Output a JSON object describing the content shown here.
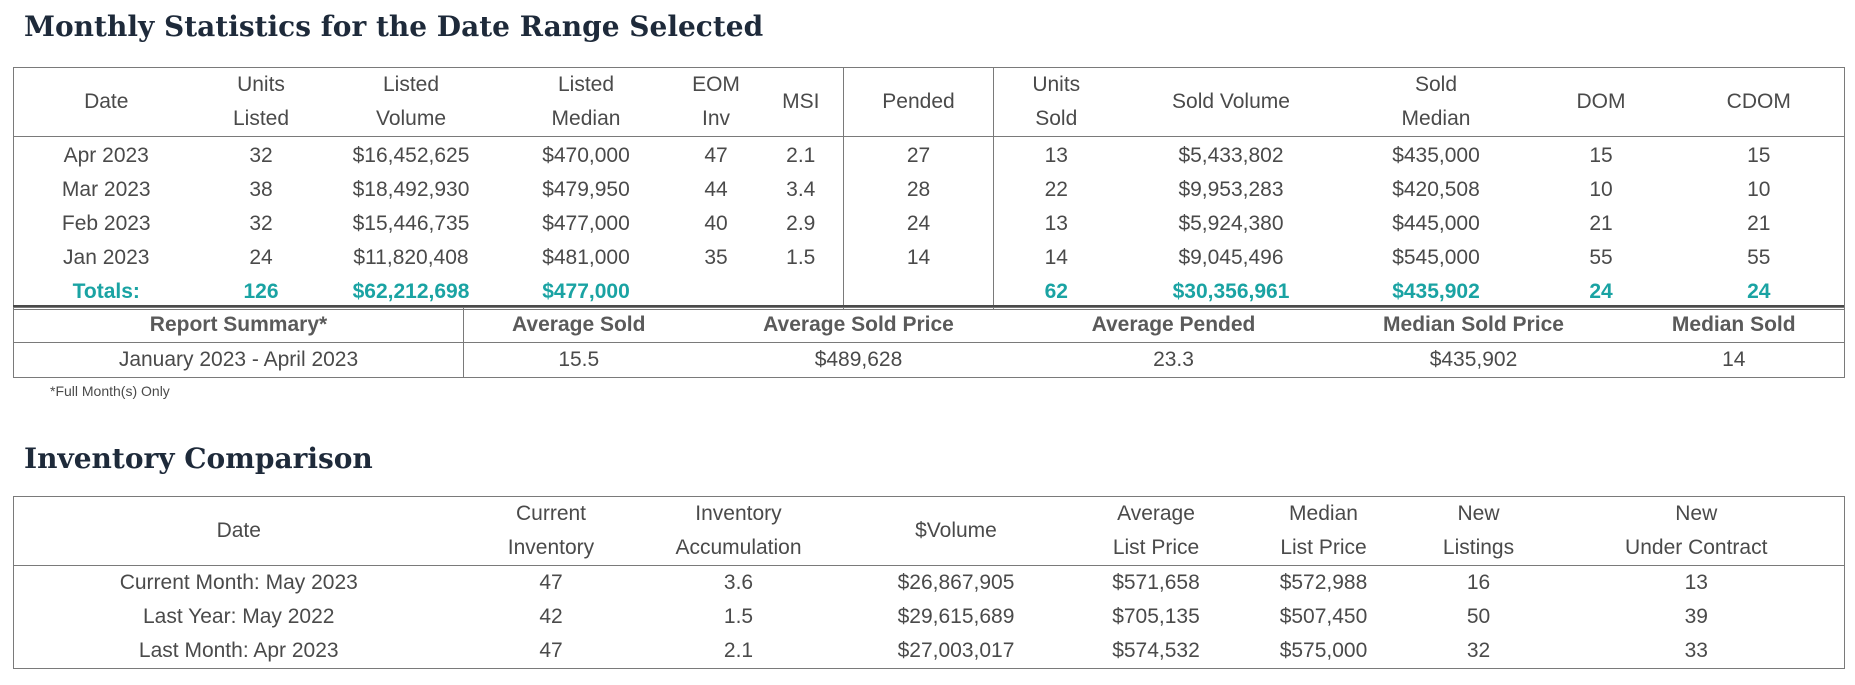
{
  "monthly": {
    "title": "Monthly Statistics for the Date Range Selected",
    "headers": {
      "date": "Date",
      "units_listed": [
        "Units",
        "Listed"
      ],
      "listed_volume": [
        "Listed",
        "Volume"
      ],
      "listed_median": [
        "Listed",
        "Median"
      ],
      "eom_inv": [
        "EOM",
        "Inv"
      ],
      "msi": "MSI",
      "pended": "Pended",
      "units_sold": [
        "Units",
        "Sold"
      ],
      "sold_volume": "Sold Volume",
      "sold_median": [
        "Sold",
        "Median"
      ],
      "dom": "DOM",
      "cdom": "CDOM"
    },
    "rows": [
      [
        "Apr 2023",
        "32",
        "$16,452,625",
        "$470,000",
        "47",
        "2.1",
        "27",
        "13",
        "$5,433,802",
        "$435,000",
        "15",
        "15"
      ],
      [
        "Mar 2023",
        "38",
        "$18,492,930",
        "$479,950",
        "44",
        "3.4",
        "28",
        "22",
        "$9,953,283",
        "$420,508",
        "10",
        "10"
      ],
      [
        "Feb 2023",
        "32",
        "$15,446,735",
        "$477,000",
        "40",
        "2.9",
        "24",
        "13",
        "$5,924,380",
        "$445,000",
        "21",
        "21"
      ],
      [
        "Jan 2023",
        "24",
        "$11,820,408",
        "$481,000",
        "35",
        "1.5",
        "14",
        "14",
        "$9,045,496",
        "$545,000",
        "55",
        "55"
      ]
    ],
    "totals": [
      "Totals:",
      "126",
      "$62,212,698",
      "$477,000",
      "",
      "",
      "",
      "62",
      "$30,356,961",
      "$435,902",
      "24",
      "24"
    ]
  },
  "summary": {
    "headers": [
      "Report Summary*",
      "Average Sold",
      "Average Sold Price",
      "Average Pended",
      "Median Sold Price",
      "Median Sold"
    ],
    "values": [
      "January 2023 - April 2023",
      "15.5",
      "$489,628",
      "23.3",
      "$435,902",
      "14"
    ],
    "footnote": "*Full Month(s) Only"
  },
  "inventory": {
    "title": "Inventory Comparison",
    "headers": [
      [
        "Date"
      ],
      [
        "Current",
        "Inventory"
      ],
      [
        "Inventory",
        "Accumulation"
      ],
      [
        "$Volume"
      ],
      [
        "Average",
        "List Price"
      ],
      [
        "Median",
        "List Price"
      ],
      [
        "New",
        "Listings"
      ],
      [
        "New",
        "Under Contract"
      ]
    ],
    "rows": [
      [
        "Current Month: May 2023",
        "47",
        "3.6",
        "$26,867,905",
        "$571,658",
        "$572,988",
        "16",
        "13"
      ],
      [
        "Last Year: May 2022",
        "42",
        "1.5",
        "$29,615,689",
        "$705,135",
        "$507,450",
        "50",
        "39"
      ],
      [
        "Last Month: Apr 2023",
        "47",
        "2.1",
        "$27,003,017",
        "$574,532",
        "$575,000",
        "32",
        "33"
      ]
    ]
  },
  "colors": {
    "totals": "#1aa3a3",
    "title": "#1e2a3a",
    "border": "#7a7a7a"
  }
}
